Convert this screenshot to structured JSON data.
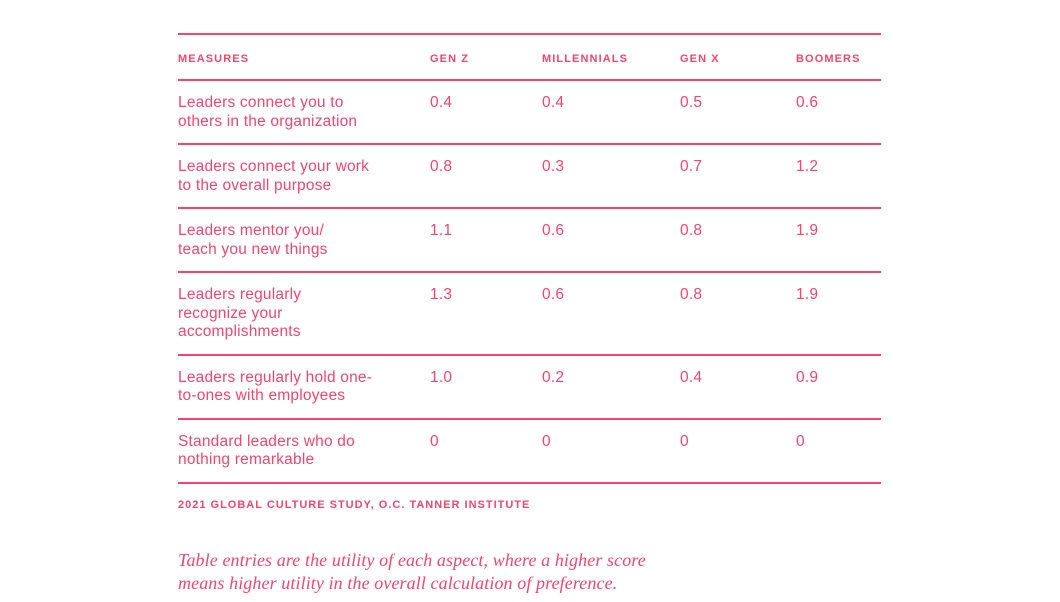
{
  "colors": {
    "pink": "#f2466f",
    "background": "#ffffff"
  },
  "table": {
    "columns": [
      "MEASURES",
      "GEN Z",
      "MILLENNIALS",
      "GEN X",
      "BOOMERS"
    ],
    "rows": [
      {
        "measure_lines": [
          "Leaders connect you to",
          "others in the organization"
        ],
        "values": [
          "0.4",
          "0.4",
          "0.5",
          "0.6"
        ]
      },
      {
        "measure_lines": [
          "Leaders connect your work",
          "to the overall purpose"
        ],
        "values": [
          "0.8",
          "0.3",
          "0.7",
          "1.2"
        ]
      },
      {
        "measure_lines": [
          "Leaders mentor you/",
          "teach you new things"
        ],
        "values": [
          "1.1",
          "0.6",
          "0.8",
          "1.9"
        ]
      },
      {
        "measure_lines": [
          "Leaders regularly",
          "recognize your",
          "accomplishments"
        ],
        "values": [
          "1.3",
          "0.6",
          "0.8",
          "1.9"
        ]
      },
      {
        "measure_lines": [
          "Leaders regularly hold one-",
          "to-ones with employees"
        ],
        "values": [
          "1.0",
          "0.2",
          "0.4",
          "0.9"
        ]
      },
      {
        "measure_lines": [
          "Standard leaders who do",
          "nothing remarkable"
        ],
        "values": [
          "0",
          "0",
          "0",
          "0"
        ]
      }
    ],
    "source": "2021 GLOBAL CULTURE STUDY, O.C. TANNER INSTITUTE"
  },
  "caption_lines": [
    "Table entries are the utility of each aspect, where a higher score",
    "means higher utility in the overall calculation of preference."
  ],
  "chart_data": {
    "type": "table",
    "title": "",
    "columns": [
      "Measures",
      "Gen Z",
      "Millennials",
      "Gen X",
      "Boomers"
    ],
    "rows": [
      [
        "Leaders connect you to others in the organization",
        0.4,
        0.4,
        0.5,
        0.6
      ],
      [
        "Leaders connect your work to the overall purpose",
        0.8,
        0.3,
        0.7,
        1.2
      ],
      [
        "Leaders mentor you/teach you new things",
        1.1,
        0.6,
        0.8,
        1.9
      ],
      [
        "Leaders regularly recognize your accomplishments",
        1.3,
        0.6,
        0.8,
        1.9
      ],
      [
        "Leaders regularly hold one-to-ones with employees",
        1.0,
        0.2,
        0.4,
        0.9
      ],
      [
        "Standard leaders who do nothing remarkable",
        0,
        0,
        0,
        0
      ]
    ],
    "source": "2021 Global Culture Study, O.C. Tanner Institute",
    "note": "Table entries are the utility of each aspect, where a higher score means higher utility in the overall calculation of preference."
  }
}
